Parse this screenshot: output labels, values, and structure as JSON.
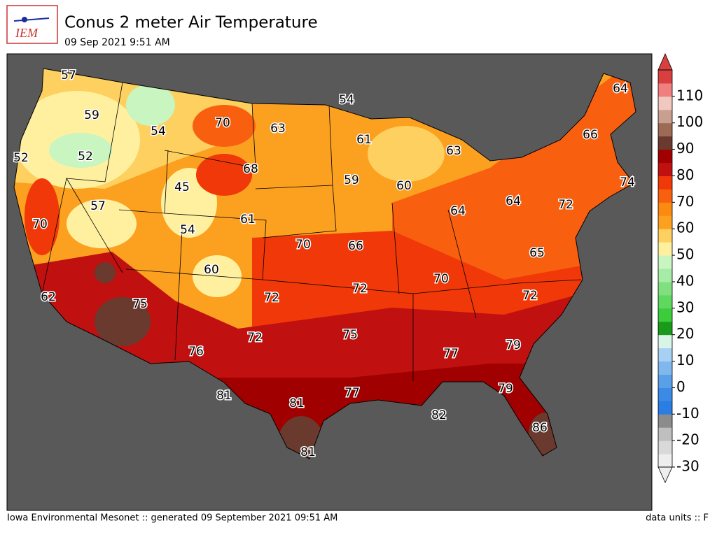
{
  "header": {
    "logo_text": "IEM",
    "title": "Conus 2 meter Air Temperature",
    "subtitle": "09 Sep 2021 9:51 AM"
  },
  "footer": {
    "left": "Iowa Environmental Mesonet :: generated 09 September 2021 09:51 AM",
    "right": "data units :: F"
  },
  "map": {
    "labels": [
      57,
      54,
      64,
      59,
      70,
      63,
      66,
      54,
      61,
      63,
      52,
      52,
      68,
      45,
      59,
      60,
      74,
      57,
      64,
      72,
      61,
      64,
      70,
      54,
      70,
      66,
      65,
      60,
      70,
      72,
      72,
      72,
      62,
      75,
      75,
      72,
      77,
      79,
      76,
      81,
      81,
      77,
      79,
      82,
      86,
      81
    ]
  },
  "colorbar": {
    "lim": [
      -30,
      120
    ],
    "ticks": [
      -30,
      -20,
      -10,
      0,
      10,
      20,
      30,
      40,
      50,
      60,
      70,
      80,
      90,
      100,
      110
    ],
    "colors": [
      "#eeeeee",
      "#d9d9d9",
      "#bfbfbf",
      "#8c8c8c",
      "#2a7de1",
      "#3a8ae6",
      "#5aa0e8",
      "#80b8ee",
      "#a8d0f2",
      "#d8f5e8",
      "#1a9a1a",
      "#3ccc3c",
      "#5ed85e",
      "#80e080",
      "#a6eba6",
      "#c8f5c0",
      "#fff0a0",
      "#fdd060",
      "#fca020",
      "#fb8a10",
      "#f86010",
      "#f03808",
      "#c01010",
      "#a00000",
      "#6a3a2e",
      "#9c6a55",
      "#c8a090",
      "#f0c8c0",
      "#f08080",
      "#d84040"
    ]
  }
}
